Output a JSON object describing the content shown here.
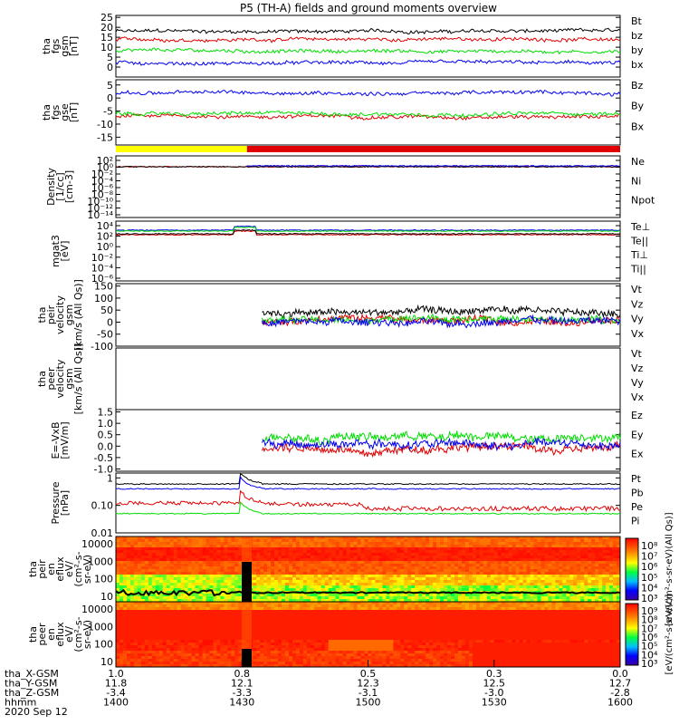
{
  "title": "P5 (TH-A) fields and ground moments overview",
  "date_label": "2020 Sep 12",
  "colors": {
    "black": "#000000",
    "red": "#e00000",
    "green": "#00dd00",
    "blue": "#0000ee",
    "purple": "#8800aa",
    "yellow": "#ffff00"
  },
  "chart_data": [
    {
      "type": "line",
      "id": "fgs_a",
      "ylabel": [
        "tha",
        "fgs",
        "gsm",
        "[nT]"
      ],
      "ylim": [
        -5,
        26
      ],
      "yticks": [
        "25",
        "20",
        "15",
        "10",
        "5",
        "0"
      ],
      "legend": [
        "Bt",
        "bz",
        "by",
        "bx"
      ],
      "series": [
        {
          "name": "Bt",
          "color": "black",
          "start": 0,
          "approx_level": 18
        },
        {
          "name": "bz",
          "color": "red",
          "start": 0,
          "approx_level": 14
        },
        {
          "name": "by",
          "color": "green",
          "start": 0,
          "approx_level": 8
        },
        {
          "name": "bx",
          "color": "blue",
          "start": 0,
          "approx_level": 2
        }
      ]
    },
    {
      "type": "line",
      "id": "fgs_b",
      "ylabel": [
        "tha",
        "fgs",
        "gse",
        "[nT]"
      ],
      "ylim": [
        -18,
        7
      ],
      "yticks": [
        "5",
        "0",
        "-5",
        "-10",
        "-15"
      ],
      "legend": [
        "Bz",
        "By",
        "Bx"
      ],
      "series": [
        {
          "name": "Bz",
          "color": "red",
          "start": 0,
          "approx_level": -7
        },
        {
          "name": "By",
          "color": "green",
          "start": 0,
          "approx_level": -6
        },
        {
          "name": "Bx",
          "color": "blue",
          "start": 0,
          "approx_level": 2
        }
      ]
    },
    {
      "type": "line",
      "id": "density",
      "ylabel": [
        "Density",
        "[1/cc]",
        "[cm-3]"
      ],
      "yscale": "log",
      "yticks": [
        "10²",
        "10⁰",
        "10⁻²",
        "10⁻⁴",
        "10⁻⁶",
        "10⁻⁸",
        "10⁻¹⁰",
        "10⁻¹²",
        "10⁻¹⁴"
      ],
      "legend": [
        "Ne",
        "Ni",
        "Npot"
      ],
      "series": [
        {
          "name": "Ne",
          "color": "red",
          "start": 0,
          "approx_level": 10
        },
        {
          "name": "Ni",
          "color": "black",
          "start": 0,
          "approx_level": 10
        },
        {
          "name": "Npot",
          "color": "blue",
          "start": 0.26,
          "approx_level": 12
        }
      ]
    },
    {
      "type": "line",
      "id": "temperature",
      "ylabel": [
        "mgat3",
        "[eV]"
      ],
      "yscale": "log",
      "yticks": [
        "10⁴",
        "10²",
        "10⁰",
        "10⁻²",
        "10⁻⁴",
        "10⁻⁶"
      ],
      "legend": [
        "Te⊥",
        "Te||",
        "Ti⊥",
        "Ti||"
      ],
      "series": [
        {
          "name": "Te⊥",
          "color": "red",
          "start": 0,
          "approx_level": 30
        },
        {
          "name": "Te||",
          "color": "black",
          "start": 0,
          "approx_level": 40
        },
        {
          "name": "Ti⊥",
          "color": "blue",
          "start": 0,
          "approx_level": 200
        },
        {
          "name": "Ti||",
          "color": "green",
          "start": 0,
          "approx_level": 150
        }
      ]
    },
    {
      "type": "line",
      "id": "peir_velocity",
      "ylabel": [
        "tha",
        "peir",
        "velocity",
        "gsm",
        "[km/s (All Qs)]"
      ],
      "ylim": [
        -100,
        160
      ],
      "yticks": [
        "150",
        "100",
        "50",
        "0",
        "-50",
        "-100"
      ],
      "legend": [
        "Vt",
        "Vz",
        "Vy",
        "Vx"
      ],
      "series": [
        {
          "name": "Vt",
          "color": "black",
          "start": 0.29,
          "approx_level": 40
        },
        {
          "name": "Vz",
          "color": "red",
          "start": 0.29,
          "approx_level": 5
        },
        {
          "name": "Vy",
          "color": "green",
          "start": 0.29,
          "approx_level": 10
        },
        {
          "name": "Vx",
          "color": "blue",
          "start": 0.29,
          "approx_level": 0
        }
      ]
    },
    {
      "type": "line",
      "id": "peer_velocity",
      "ylabel": [
        "tha",
        "peer",
        "velocity",
        "gsm",
        "[km/s (All Qs)]"
      ],
      "legend": [
        "Vt",
        "Vz",
        "Vy",
        "Vx"
      ],
      "series": []
    },
    {
      "type": "line",
      "id": "efield",
      "ylabel": [
        "E=-VxB",
        "[mV/m]"
      ],
      "ylim": [
        -1.1,
        1.6
      ],
      "yticks": [
        "1.5",
        "1.0",
        "0.5",
        "0.0",
        "-0.5",
        "-1.0"
      ],
      "legend": [
        "Ez",
        "Ey",
        "Ex"
      ],
      "series": [
        {
          "name": "Ez",
          "color": "red",
          "start": 0.29,
          "approx_level": -0.1
        },
        {
          "name": "Ey",
          "color": "green",
          "start": 0.29,
          "approx_level": 0.4
        },
        {
          "name": "Ex",
          "color": "blue",
          "start": 0.29,
          "approx_level": 0.1
        }
      ]
    },
    {
      "type": "line",
      "id": "pressure",
      "ylabel": [
        "Pressure",
        "[nPa]"
      ],
      "yscale": "log",
      "ylim": [
        0.01,
        1.5
      ],
      "yticks": [
        "1",
        "0.10",
        "0.01"
      ],
      "legend": [
        "Pt",
        "Pb",
        "Pe",
        "Pi"
      ],
      "series": [
        {
          "name": "Pt",
          "color": "black",
          "start": 0,
          "approx_level": 0.6
        },
        {
          "name": "Pb",
          "color": "blue",
          "start": 0,
          "approx_level": 0.4
        },
        {
          "name": "Pe",
          "color": "red",
          "start": 0,
          "approx_level": 0.12
        },
        {
          "name": "Pi",
          "color": "green",
          "start": 0,
          "approx_level": 0.05
        }
      ]
    },
    {
      "type": "heatmap",
      "id": "peir_spec",
      "ylabel": [
        "tha",
        "peir",
        "en",
        "eflux",
        "eV/",
        "(cm²-s-",
        "sr-eV)"
      ],
      "yscale": "log",
      "yticks": [
        "10000",
        "1000",
        "100",
        "10"
      ],
      "colorbar_ticks": [
        "10⁸",
        "10⁷",
        "10⁶",
        "10⁵",
        "10⁴",
        "10³"
      ],
      "colorbar_label": "[eV/(cm²-s-sr-eV)(All Qs)]"
    },
    {
      "type": "heatmap",
      "id": "peer_spec",
      "ylabel": [
        "tha",
        "peer",
        "en",
        "eflux",
        "eV/",
        "(cm²-s-",
        "sr-eV)"
      ],
      "yscale": "log",
      "yticks": [
        "10000",
        "1000",
        "100",
        "10"
      ],
      "colorbar_ticks": [
        "10⁹",
        "10⁸",
        "10⁷",
        "10⁶",
        "10⁵",
        "10⁴",
        "10³"
      ],
      "colorbar_label": "[eV/(cm²-s-sr-eV)]"
    }
  ],
  "mode_bar": {
    "segments": [
      {
        "color": "yellow",
        "start": 0,
        "end": 0.26
      },
      {
        "color": "red",
        "start": 0.26,
        "end": 1
      }
    ]
  },
  "x_axis": {
    "row_labels": [
      "tha_X-GSM",
      "tha_Y-GSM",
      "tha_Z-GSM",
      "hhmm",
      "2020 Sep 12"
    ],
    "ticks": [
      {
        "pos": 0.0,
        "values": [
          "1.0",
          "11.8",
          "-3.4",
          "1400"
        ]
      },
      {
        "pos": 0.25,
        "values": [
          "0.8",
          "12.1",
          "-3.3",
          "1430"
        ]
      },
      {
        "pos": 0.5,
        "values": [
          "0.5",
          "12.3",
          "-3.1",
          "1500"
        ]
      },
      {
        "pos": 0.75,
        "values": [
          "0.3",
          "12.5",
          "-3.0",
          "1530"
        ]
      },
      {
        "pos": 1.0,
        "values": [
          "0.0",
          "12.7",
          "-2.8",
          "1600"
        ]
      }
    ]
  }
}
